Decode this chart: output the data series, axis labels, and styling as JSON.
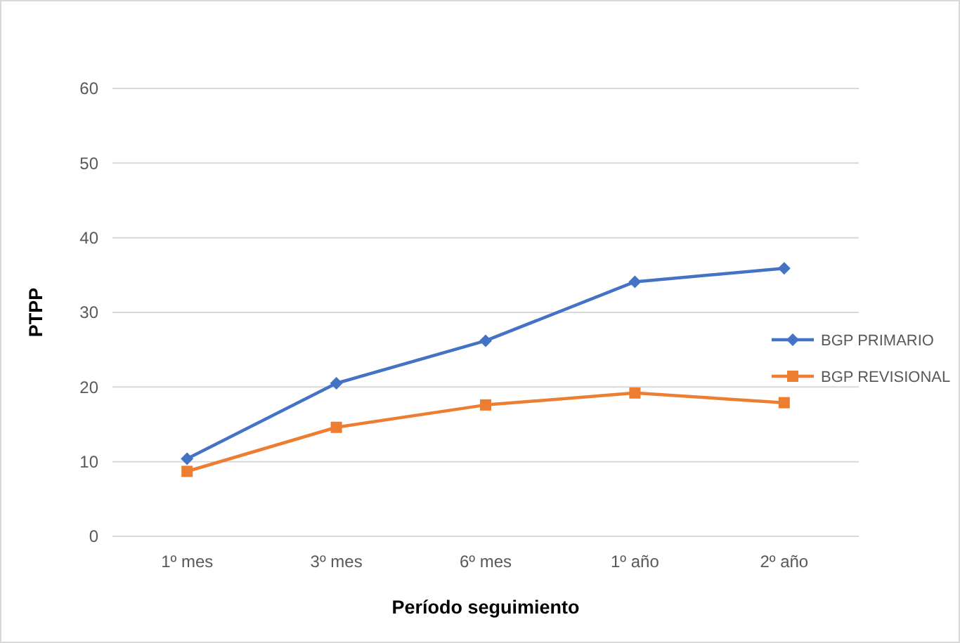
{
  "chart_data": {
    "type": "line",
    "xlabel": "Período seguimiento",
    "ylabel": "PTPP",
    "categories": [
      "1º mes",
      "3º mes",
      "6º mes",
      "1º año",
      "2º año"
    ],
    "series": [
      {
        "name": "BGP PRIMARIO",
        "color": "#4472c4",
        "marker": "diamond",
        "values": [
          10.4,
          20.5,
          26.2,
          34.1,
          35.9
        ]
      },
      {
        "name": "BGP REVISIONAL",
        "color": "#ed7d31",
        "marker": "square",
        "values": [
          8.7,
          14.6,
          17.6,
          19.2,
          17.9
        ]
      }
    ],
    "ylim": [
      0,
      60
    ],
    "yticks": [
      0,
      10,
      20,
      30,
      40,
      50,
      60
    ],
    "grid": "y",
    "legend": "right"
  }
}
